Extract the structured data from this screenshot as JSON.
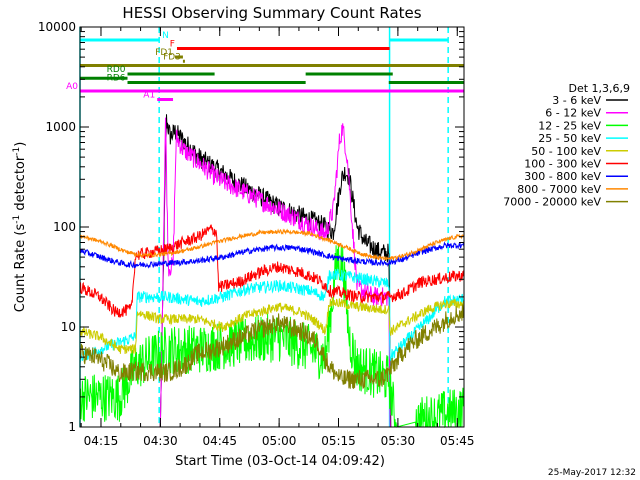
{
  "chart_data": {
    "type": "line",
    "title": "HESSI Observing Summary Count Rates",
    "xlabel": "Start Time (03-Oct-14 04:09:42)",
    "ylabel_main": "Count Rate (s",
    "ylabel_sup1": "-1",
    "ylabel_mid": " detector",
    "ylabel_sup2": "-1",
    "ylabel_end": ")",
    "y_scale": "log",
    "ylim": [
      1,
      10000
    ],
    "x_minutes_range": [
      0,
      97
    ],
    "x_ticks": [
      {
        "label": "04:15",
        "min": 5.3
      },
      {
        "label": "04:30",
        "min": 20.3
      },
      {
        "label": "04:45",
        "min": 35.3
      },
      {
        "label": "05:00",
        "min": 50.3
      },
      {
        "label": "05:15",
        "min": 65.3
      },
      {
        "label": "05:30",
        "min": 80.3
      },
      {
        "label": "05:45",
        "min": 95.3
      }
    ],
    "y_ticks": [
      {
        "label": "1",
        "value": 1
      },
      {
        "label": "10",
        "value": 10
      },
      {
        "label": "100",
        "value": 100
      },
      {
        "label": "1000",
        "value": 1000
      },
      {
        "label": "10000",
        "value": 10000
      }
    ],
    "legend_title": "Det 1,3,6,9",
    "legend_position": "right",
    "series": [
      {
        "name": "3 - 6 keV",
        "color": "#000000",
        "noise": 0.1,
        "points": [
          [
            20.3,
            1
          ],
          [
            21.8,
            1200
          ],
          [
            22.8,
            800
          ],
          [
            24,
            900
          ],
          [
            30,
            500
          ],
          [
            40,
            270
          ],
          [
            50,
            160
          ],
          [
            60,
            110
          ],
          [
            64,
            90
          ],
          [
            66,
            300
          ],
          [
            67,
            360
          ],
          [
            68,
            320
          ],
          [
            70,
            100
          ],
          [
            72,
            70
          ],
          [
            76,
            55
          ],
          [
            78,
            55
          ],
          [
            78.5,
            1
          ],
          [
            82,
            1
          ],
          [
            97,
            1
          ]
        ]
      },
      {
        "name": "6 - 12 keV",
        "color": "#ff00ff",
        "noise": 0.1,
        "points": [
          [
            0,
            1
          ],
          [
            20.3,
            1
          ],
          [
            21.6,
            1200
          ],
          [
            22.3,
            40
          ],
          [
            23.5,
            40
          ],
          [
            24.3,
            800
          ],
          [
            26,
            600
          ],
          [
            35,
            300
          ],
          [
            45,
            190
          ],
          [
            55,
            120
          ],
          [
            62,
            85
          ],
          [
            64,
            150
          ],
          [
            65.5,
            700
          ],
          [
            66.3,
            1000
          ],
          [
            67.5,
            500
          ],
          [
            69,
            80
          ],
          [
            70,
            25
          ],
          [
            74,
            20
          ],
          [
            78,
            20
          ],
          [
            78.3,
            1
          ],
          [
            97,
            1
          ]
        ]
      },
      {
        "name": "12 - 25 keV",
        "color": "#00ff00",
        "noise": 0.25,
        "points": [
          [
            0,
            2
          ],
          [
            10,
            2
          ],
          [
            14,
            4
          ],
          [
            22,
            6
          ],
          [
            30,
            6
          ],
          [
            40,
            7
          ],
          [
            50,
            8
          ],
          [
            58,
            6
          ],
          [
            62,
            5
          ],
          [
            65,
            50
          ],
          [
            66.5,
            40
          ],
          [
            68,
            8
          ],
          [
            70,
            4
          ],
          [
            78,
            3
          ],
          [
            80,
            1
          ],
          [
            97,
            1.5
          ]
        ]
      },
      {
        "name": "25 - 50 keV",
        "color": "#00ffff",
        "noise": 0.06,
        "points": [
          [
            0,
            5
          ],
          [
            5,
            6
          ],
          [
            10,
            7
          ],
          [
            14,
            8
          ],
          [
            14.5,
            20
          ],
          [
            22,
            20
          ],
          [
            30,
            18
          ],
          [
            36,
            20
          ],
          [
            42,
            24
          ],
          [
            50,
            26
          ],
          [
            58,
            23
          ],
          [
            62,
            20
          ],
          [
            63,
            34
          ],
          [
            70,
            31
          ],
          [
            76,
            28
          ],
          [
            78,
            27
          ],
          [
            78.3,
            5
          ],
          [
            82,
            7
          ],
          [
            88,
            12
          ],
          [
            92,
            18
          ],
          [
            97,
            19
          ]
        ]
      },
      {
        "name": "50 - 100 keV",
        "color": "#cccc00",
        "noise": 0.05,
        "points": [
          [
            0,
            9
          ],
          [
            5,
            8
          ],
          [
            10,
            6
          ],
          [
            14,
            6
          ],
          [
            14.5,
            14
          ],
          [
            20,
            12
          ],
          [
            26,
            12
          ],
          [
            30,
            12
          ],
          [
            36,
            10
          ],
          [
            42,
            13
          ],
          [
            50,
            16
          ],
          [
            56,
            14
          ],
          [
            60,
            11
          ],
          [
            62,
            9
          ],
          [
            63,
            18
          ],
          [
            70,
            16
          ],
          [
            76,
            15
          ],
          [
            78,
            15
          ],
          [
            78.3,
            9
          ],
          [
            82,
            11
          ],
          [
            88,
            15
          ],
          [
            92,
            17
          ],
          [
            97,
            17
          ]
        ]
      },
      {
        "name": "100 - 300 keV",
        "color": "#ff0000",
        "noise": 0.06,
        "points": [
          [
            0,
            25
          ],
          [
            5,
            20
          ],
          [
            9,
            14
          ],
          [
            13,
            15
          ],
          [
            14,
            52
          ],
          [
            22,
            60
          ],
          [
            26,
            70
          ],
          [
            30,
            80
          ],
          [
            33,
            95
          ],
          [
            34.5,
            90
          ],
          [
            35,
            25
          ],
          [
            40,
            28
          ],
          [
            46,
            36
          ],
          [
            50,
            40
          ],
          [
            56,
            35
          ],
          [
            60,
            30
          ],
          [
            62,
            26
          ],
          [
            63,
            23
          ],
          [
            66,
            22
          ],
          [
            70,
            20
          ],
          [
            76,
            20
          ],
          [
            78,
            20
          ],
          [
            78.3,
            20
          ],
          [
            82,
            22
          ],
          [
            86,
            28
          ],
          [
            92,
            31
          ],
          [
            97,
            33
          ]
        ]
      },
      {
        "name": "300 - 800 keV",
        "color": "#0000ff",
        "noise": 0.03,
        "points": [
          [
            0,
            58
          ],
          [
            4,
            52
          ],
          [
            8,
            46
          ],
          [
            12,
            42
          ],
          [
            16,
            42
          ],
          [
            24,
            44
          ],
          [
            30,
            46
          ],
          [
            36,
            50
          ],
          [
            42,
            57
          ],
          [
            48,
            62
          ],
          [
            54,
            62
          ],
          [
            58,
            58
          ],
          [
            62,
            52
          ],
          [
            66,
            48
          ],
          [
            70,
            46
          ],
          [
            74,
            44
          ],
          [
            78,
            44
          ],
          [
            82,
            48
          ],
          [
            86,
            56
          ],
          [
            92,
            65
          ],
          [
            97,
            66
          ]
        ]
      },
      {
        "name": "800 - 7000 keV",
        "color": "#ff8800",
        "noise": 0.02,
        "points": [
          [
            0,
            82
          ],
          [
            6,
            70
          ],
          [
            12,
            56
          ],
          [
            16,
            52
          ],
          [
            22,
            54
          ],
          [
            28,
            60
          ],
          [
            34,
            70
          ],
          [
            40,
            80
          ],
          [
            46,
            88
          ],
          [
            52,
            90
          ],
          [
            58,
            86
          ],
          [
            62,
            76
          ],
          [
            66,
            66
          ],
          [
            70,
            56
          ],
          [
            74,
            50
          ],
          [
            78,
            48
          ],
          [
            82,
            52
          ],
          [
            86,
            60
          ],
          [
            90,
            70
          ],
          [
            94,
            78
          ],
          [
            97,
            82
          ]
        ]
      },
      {
        "name": "7000 - 20000 keV",
        "color": "#808000",
        "noise": 0.1,
        "points": [
          [
            0,
            5.5
          ],
          [
            4,
            5
          ],
          [
            8,
            4
          ],
          [
            10,
            3.4
          ],
          [
            14,
            3.6
          ],
          [
            18,
            3.6
          ],
          [
            22,
            3.5
          ],
          [
            26,
            4
          ],
          [
            30,
            5.5
          ],
          [
            34,
            6
          ],
          [
            38,
            7
          ],
          [
            44,
            9
          ],
          [
            50,
            11
          ],
          [
            56,
            9
          ],
          [
            60,
            7
          ],
          [
            63,
            4
          ],
          [
            66,
            3
          ],
          [
            70,
            3
          ],
          [
            76,
            3
          ],
          [
            78,
            3.5
          ],
          [
            82,
            6
          ],
          [
            86,
            8
          ],
          [
            90,
            10
          ],
          [
            94,
            13
          ],
          [
            97,
            14
          ]
        ]
      }
    ],
    "vertical_lines": [
      {
        "color": "#00ffff",
        "min": 0,
        "style": "solid"
      },
      {
        "color": "#00ffff",
        "min": 20.0,
        "style": "dashed"
      },
      {
        "color": "#00ffff",
        "min": 78.2,
        "style": "solid"
      },
      {
        "color": "#00ffff",
        "min": 93.0,
        "style": "dashed"
      }
    ],
    "flag_bars": [
      {
        "label": "N",
        "color": "#00ffff",
        "segments": [
          [
            0,
            20.0
          ],
          [
            78.2,
            93.0
          ]
        ],
        "row": 0
      },
      {
        "label": "F",
        "color": "#ff0000",
        "segments": [
          [
            24.5,
            78.2
          ]
        ],
        "row": 1
      },
      {
        "label": "FD1",
        "color": "#808000",
        "segments": [
          [
            24.0,
            26.0
          ]
        ],
        "row": 2
      },
      {
        "label": "FD3",
        "color": "#808000",
        "segments": [
          [
            26.0,
            26.0
          ]
        ],
        "row": 2.5
      },
      {
        "label": "",
        "color": "#808000",
        "segments": [
          [
            0,
            97
          ]
        ],
        "row": 3
      },
      {
        "label": "RD0",
        "color": "#008000",
        "segments": [
          [
            12,
            34
          ]
        ],
        "row": 4
      },
      {
        "label": "",
        "color": "#008000",
        "segments": [
          [
            57,
            79
          ]
        ],
        "row": 4
      },
      {
        "label": "RD6",
        "color": "#008000",
        "segments": [
          [
            12,
            57
          ],
          [
            78,
            97
          ]
        ],
        "row": 5
      },
      {
        "label": "",
        "color": "#008000",
        "segments": [
          [
            0,
            12
          ]
        ],
        "row": 4.5
      },
      {
        "label": "A0",
        "color": "#ff00ff",
        "segments": [
          [
            0,
            97
          ]
        ],
        "row": 6
      },
      {
        "label": "A1",
        "color": "#ff00ff",
        "segments": [
          [
            19.5,
            23.5
          ]
        ],
        "row": 7
      }
    ]
  },
  "footer_date": "25-May-2017 12:32"
}
